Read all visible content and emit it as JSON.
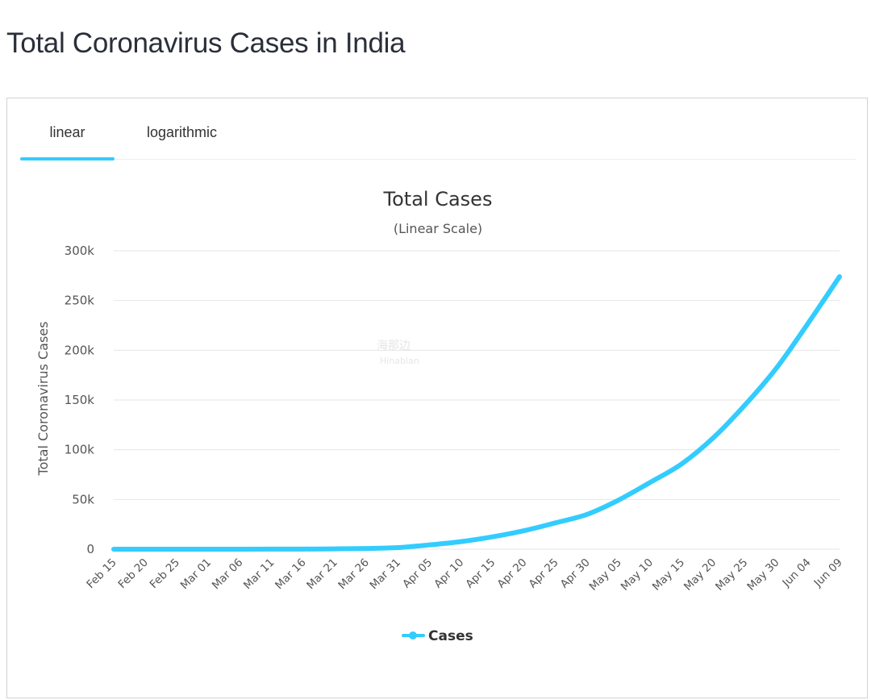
{
  "page": {
    "title": "Total Coronavirus Cases in India"
  },
  "tabs": [
    {
      "label": "linear",
      "active": true
    },
    {
      "label": "logarithmic",
      "active": false
    }
  ],
  "watermark": {
    "line1": "海那边",
    "line2": "Hinabian"
  },
  "colors": {
    "series": "#33ccff",
    "grid": "#e6e6e6",
    "tab_active": "#33ccff"
  },
  "chart_data": {
    "type": "line",
    "title": "Total Cases",
    "subtitle": "(Linear Scale)",
    "ylabel": "Total Coronavirus Cases",
    "xlabel": "",
    "ylim": [
      0,
      300000
    ],
    "yticks": [
      {
        "value": 0,
        "label": "0"
      },
      {
        "value": 50000,
        "label": "50k"
      },
      {
        "value": 100000,
        "label": "100k"
      },
      {
        "value": 150000,
        "label": "150k"
      },
      {
        "value": 200000,
        "label": "200k"
      },
      {
        "value": 250000,
        "label": "250k"
      },
      {
        "value": 300000,
        "label": "300k"
      }
    ],
    "xticks": [
      "Feb 15",
      "Feb 20",
      "Feb 25",
      "Mar 01",
      "Mar 06",
      "Mar 11",
      "Mar 16",
      "Mar 21",
      "Mar 26",
      "Mar 31",
      "Apr 05",
      "Apr 10",
      "Apr 15",
      "Apr 20",
      "Apr 25",
      "Apr 30",
      "May 05",
      "May 10",
      "May 15",
      "May 20",
      "May 25",
      "May 30",
      "Jun 04",
      "Jun 09"
    ],
    "legend": "top-bottom-center",
    "series": [
      {
        "name": "Cases",
        "x": [
          "Feb 15",
          "Feb 20",
          "Feb 25",
          "Mar 01",
          "Mar 06",
          "Mar 11",
          "Mar 16",
          "Mar 21",
          "Mar 26",
          "Mar 31",
          "Apr 05",
          "Apr 10",
          "Apr 15",
          "Apr 20",
          "Apr 25",
          "Apr 30",
          "May 05",
          "May 10",
          "May 15",
          "May 20",
          "May 25",
          "May 30",
          "Jun 04",
          "Jun 09"
        ],
        "values": [
          3,
          3,
          3,
          3,
          31,
          62,
          119,
          332,
          727,
          1635,
          4300,
          7600,
          12400,
          18600,
          26500,
          35000,
          49400,
          67200,
          85800,
          112000,
          144900,
          182100,
          227000,
          274000
        ]
      }
    ]
  }
}
